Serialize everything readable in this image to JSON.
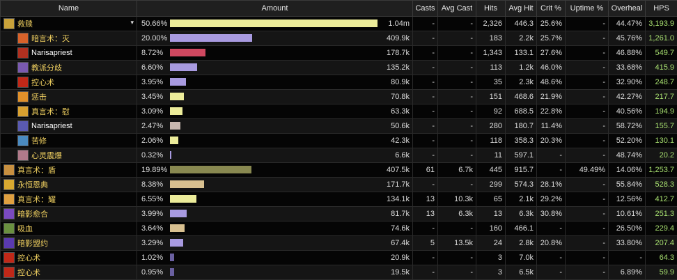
{
  "headers": {
    "name": "Name",
    "amount": "Amount",
    "casts": "Casts",
    "avg_cast": "Avg Cast",
    "hits": "Hits",
    "avg_hit": "Avg Hit",
    "crit": "Crit %",
    "uptime": "Uptime %",
    "overheal": "Overheal",
    "hps": "HPS"
  },
  "rows": [
    {
      "indent": 0,
      "icon_color": "#c9a23a",
      "name": "救赎",
      "name_color": "#f0d060",
      "dropdown": "▾",
      "pct": "50.66%",
      "bar_frac": 1.0,
      "bar_color": "#ecec9a",
      "amount": "1.04m",
      "casts": "-",
      "avg_cast": "-",
      "hits": "2,326",
      "avg_hit": "446.3",
      "crit": "25.6%",
      "uptime": "-",
      "overheal": "44.47%",
      "hps": "3,193.9"
    },
    {
      "indent": 1,
      "icon_color": "#d8622a",
      "name": "暗言术：灭",
      "name_color": "#f0d060",
      "dropdown": "",
      "pct": "20.00%",
      "bar_frac": 0.395,
      "bar_color": "#a89ae0",
      "amount": "409.9k",
      "casts": "-",
      "avg_cast": "-",
      "hits": "183",
      "avg_hit": "2.2k",
      "crit": "25.7%",
      "uptime": "-",
      "overheal": "45.76%",
      "hps": "1,261.0"
    },
    {
      "indent": 1,
      "icon_color": "#b03020",
      "name": "Narisapriest",
      "name_color": "#ffffff",
      "dropdown": "",
      "pct": "8.72%",
      "bar_frac": 0.172,
      "bar_color": "#d04860",
      "amount": "178.7k",
      "casts": "-",
      "avg_cast": "-",
      "hits": "1,343",
      "avg_hit": "133.1",
      "crit": "27.6%",
      "uptime": "-",
      "overheal": "46.88%",
      "hps": "549.7"
    },
    {
      "indent": 1,
      "icon_color": "#7a5ab0",
      "name": "教派分歧",
      "name_color": "#f0d060",
      "dropdown": "",
      "pct": "6.60%",
      "bar_frac": 0.13,
      "bar_color": "#a89ae0",
      "amount": "135.2k",
      "casts": "-",
      "avg_cast": "-",
      "hits": "113",
      "avg_hit": "1.2k",
      "crit": "46.0%",
      "uptime": "-",
      "overheal": "33.68%",
      "hps": "415.9"
    },
    {
      "indent": 1,
      "icon_color": "#c02818",
      "name": "控心术",
      "name_color": "#f0d060",
      "dropdown": "",
      "pct": "3.95%",
      "bar_frac": 0.078,
      "bar_color": "#a89ae0",
      "amount": "80.9k",
      "casts": "-",
      "avg_cast": "-",
      "hits": "35",
      "avg_hit": "2.3k",
      "crit": "48.6%",
      "uptime": "-",
      "overheal": "32.90%",
      "hps": "248.7"
    },
    {
      "indent": 1,
      "icon_color": "#e0902a",
      "name": "惩击",
      "name_color": "#f0d060",
      "dropdown": "",
      "pct": "3.45%",
      "bar_frac": 0.068,
      "bar_color": "#ecec9a",
      "amount": "70.8k",
      "casts": "-",
      "avg_cast": "-",
      "hits": "151",
      "avg_hit": "468.6",
      "crit": "21.9%",
      "uptime": "-",
      "overheal": "42.27%",
      "hps": "217.7"
    },
    {
      "indent": 1,
      "icon_color": "#d8a030",
      "name": "真言术：慰",
      "name_color": "#f0d060",
      "dropdown": "",
      "pct": "3.09%",
      "bar_frac": 0.061,
      "bar_color": "#ecec9a",
      "amount": "63.3k",
      "casts": "-",
      "avg_cast": "-",
      "hits": "92",
      "avg_hit": "688.5",
      "crit": "22.8%",
      "uptime": "-",
      "overheal": "40.56%",
      "hps": "194.9"
    },
    {
      "indent": 1,
      "icon_color": "#5a5ab0",
      "name": "Narisapriest",
      "name_color": "#ffffff",
      "dropdown": "",
      "pct": "2.47%",
      "bar_frac": 0.049,
      "bar_color": "#c8b8b0",
      "amount": "50.6k",
      "casts": "-",
      "avg_cast": "-",
      "hits": "280",
      "avg_hit": "180.7",
      "crit": "11.4%",
      "uptime": "-",
      "overheal": "58.72%",
      "hps": "155.7"
    },
    {
      "indent": 1,
      "icon_color": "#4a8ac0",
      "name": "苦修",
      "name_color": "#f0d060",
      "dropdown": "",
      "pct": "2.06%",
      "bar_frac": 0.041,
      "bar_color": "#ecec9a",
      "amount": "42.3k",
      "casts": "-",
      "avg_cast": "-",
      "hits": "118",
      "avg_hit": "358.3",
      "crit": "20.3%",
      "uptime": "-",
      "overheal": "52.20%",
      "hps": "130.1"
    },
    {
      "indent": 1,
      "icon_color": "#b07a8a",
      "name": "心灵震爆",
      "name_color": "#f0d060",
      "dropdown": "",
      "pct": "0.32%",
      "bar_frac": 0.006,
      "bar_color": "#a89ae0",
      "amount": "6.6k",
      "casts": "-",
      "avg_cast": "-",
      "hits": "11",
      "avg_hit": "597.1",
      "crit": "-",
      "uptime": "-",
      "overheal": "48.74%",
      "hps": "20.2"
    },
    {
      "indent": 0,
      "icon_color": "#c89040",
      "name": "真言术：盾",
      "name_color": "#f0d060",
      "dropdown": "",
      "pct": "19.89%",
      "bar_frac": 0.393,
      "bar_color": "#888850",
      "amount": "407.5k",
      "casts": "61",
      "avg_cast": "6.7k",
      "hits": "445",
      "avg_hit": "915.7",
      "crit": "-",
      "uptime": "49.49%",
      "overheal": "14.06%",
      "hps": "1,253.7"
    },
    {
      "indent": 0,
      "icon_color": "#d8a830",
      "name": "永恒恩典",
      "name_color": "#f0d060",
      "dropdown": "",
      "pct": "8.38%",
      "bar_frac": 0.165,
      "bar_color": "#d8c090",
      "amount": "171.7k",
      "casts": "-",
      "avg_cast": "-",
      "hits": "299",
      "avg_hit": "574.3",
      "crit": "28.1%",
      "uptime": "-",
      "overheal": "55.84%",
      "hps": "528.3"
    },
    {
      "indent": 0,
      "icon_color": "#e0a040",
      "name": "真言术：耀",
      "name_color": "#f0d060",
      "dropdown": "",
      "pct": "6.55%",
      "bar_frac": 0.129,
      "bar_color": "#ecec9a",
      "amount": "134.1k",
      "casts": "13",
      "avg_cast": "10.3k",
      "hits": "65",
      "avg_hit": "2.1k",
      "crit": "29.2%",
      "uptime": "-",
      "overheal": "12.56%",
      "hps": "412.7"
    },
    {
      "indent": 0,
      "icon_color": "#7a4ac0",
      "name": "暗影愈合",
      "name_color": "#f0d060",
      "dropdown": "",
      "pct": "3.99%",
      "bar_frac": 0.079,
      "bar_color": "#a89ae0",
      "amount": "81.7k",
      "casts": "13",
      "avg_cast": "6.3k",
      "hits": "13",
      "avg_hit": "6.3k",
      "crit": "30.8%",
      "uptime": "-",
      "overheal": "10.61%",
      "hps": "251.3"
    },
    {
      "indent": 0,
      "icon_color": "#6a9040",
      "name": "吸血",
      "name_color": "#f0d060",
      "dropdown": "",
      "pct": "3.64%",
      "bar_frac": 0.072,
      "bar_color": "#d8c090",
      "amount": "74.6k",
      "casts": "-",
      "avg_cast": "-",
      "hits": "160",
      "avg_hit": "466.1",
      "crit": "-",
      "uptime": "-",
      "overheal": "26.50%",
      "hps": "229.4"
    },
    {
      "indent": 0,
      "icon_color": "#5a3ab0",
      "name": "暗影盟约",
      "name_color": "#f0d060",
      "dropdown": "",
      "pct": "3.29%",
      "bar_frac": 0.065,
      "bar_color": "#a89ae0",
      "amount": "67.4k",
      "casts": "5",
      "avg_cast": "13.5k",
      "hits": "24",
      "avg_hit": "2.8k",
      "crit": "20.8%",
      "uptime": "-",
      "overheal": "33.80%",
      "hps": "207.4"
    },
    {
      "indent": 0,
      "icon_color": "#c02818",
      "name": "控心术",
      "name_color": "#f0d060",
      "dropdown": "",
      "pct": "1.02%",
      "bar_frac": 0.02,
      "bar_color": "#6a60a0",
      "amount": "20.9k",
      "casts": "-",
      "avg_cast": "-",
      "hits": "3",
      "avg_hit": "7.0k",
      "crit": "-",
      "uptime": "-",
      "overheal": "-",
      "hps": "64.3"
    },
    {
      "indent": 0,
      "icon_color": "#c02818",
      "name": "控心术",
      "name_color": "#f0d060",
      "dropdown": "",
      "pct": "0.95%",
      "bar_frac": 0.019,
      "bar_color": "#6a60a0",
      "amount": "19.5k",
      "casts": "-",
      "avg_cast": "-",
      "hits": "3",
      "avg_hit": "6.5k",
      "crit": "-",
      "uptime": "-",
      "overheal": "6.89%",
      "hps": "59.9"
    }
  ]
}
